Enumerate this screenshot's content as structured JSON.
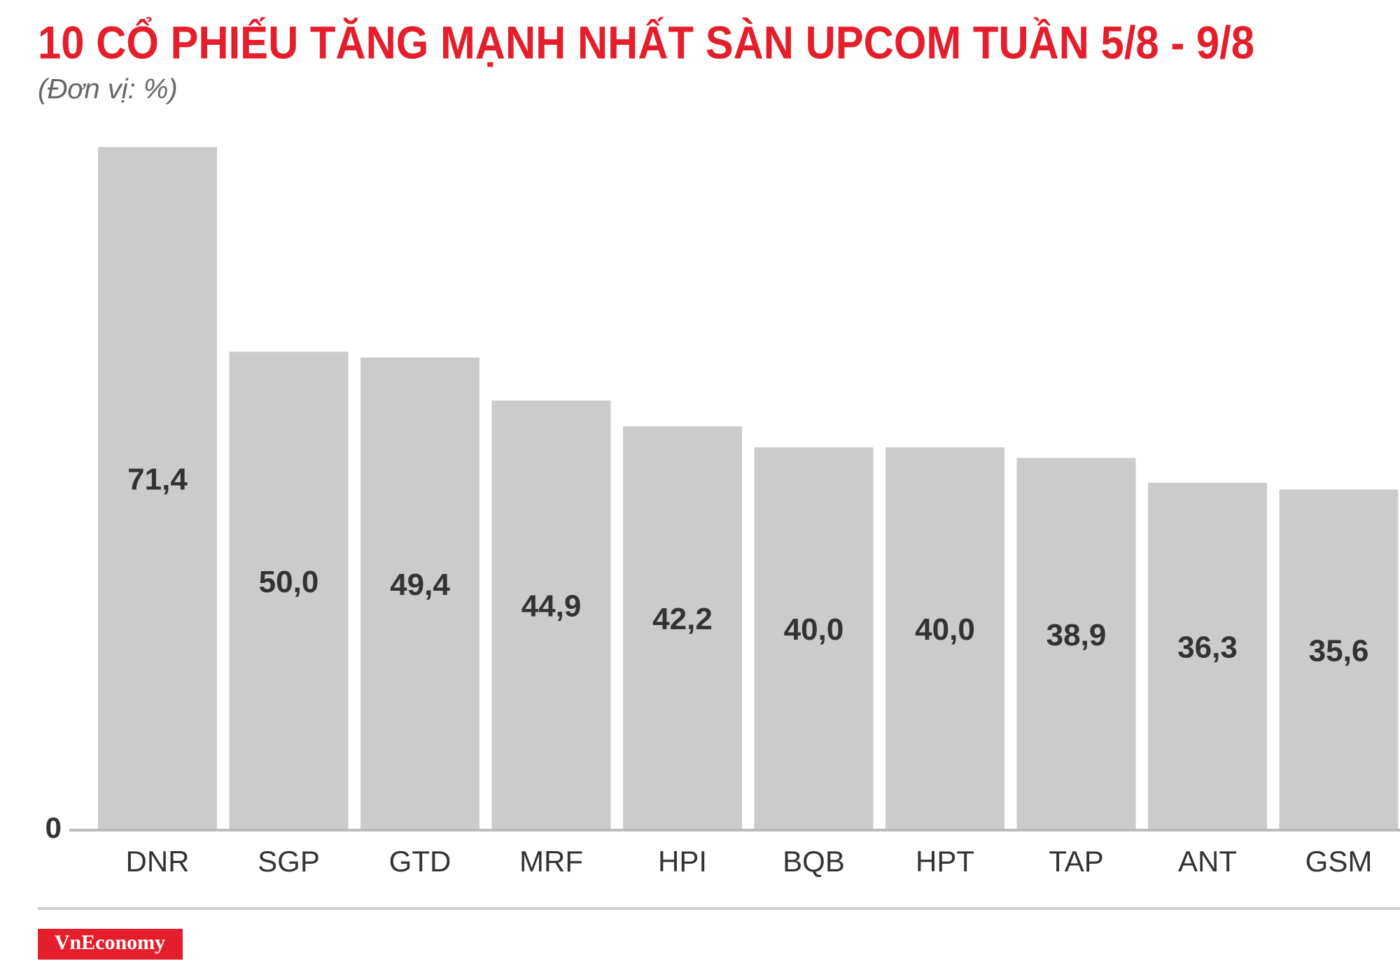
{
  "chart_data": {
    "type": "bar",
    "title": "10 CỔ PHIẾU TĂNG MẠNH NHẤT SÀN UPCOM TUẦN 5/8 - 9/8",
    "subtitle": "(Đơn vị: %)",
    "categories": [
      "DNR",
      "SGP",
      "GTD",
      "MRF",
      "HPI",
      "BQB",
      "HPT",
      "TAP",
      "ANT",
      "GSM"
    ],
    "values": [
      71.4,
      50.0,
      49.4,
      44.9,
      42.2,
      40.0,
      40.0,
      38.9,
      36.3,
      35.6
    ],
    "value_labels": [
      "71,4",
      "50,0",
      "49,4",
      "44,9",
      "42,2",
      "40,0",
      "40,0",
      "38,9",
      "36,3",
      "35,6"
    ],
    "color": "#cccbcb",
    "ylim": [
      0,
      71.4
    ],
    "yticks": [
      0
    ],
    "logo": "VnEconomy"
  }
}
